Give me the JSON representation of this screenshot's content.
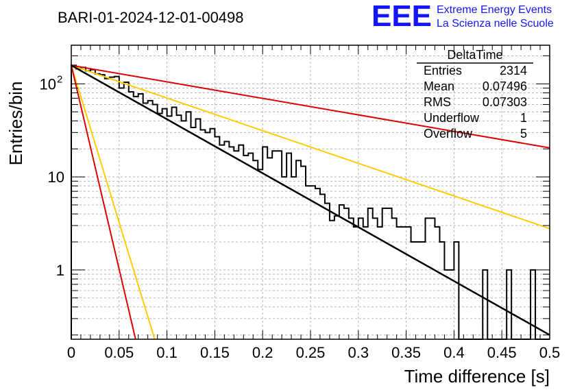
{
  "chart_data": {
    "type": "histogram",
    "title": "BARI-01-2024-12-01-00498",
    "xlabel": "Time difference [s]",
    "ylabel": "Entries/bin",
    "xlim": [
      0,
      0.5
    ],
    "ylim": [
      0.18,
      260
    ],
    "yscale": "log",
    "x_ticks": [
      "0",
      "0.05",
      "0.1",
      "0.15",
      "0.2",
      "0.25",
      "0.3",
      "0.35",
      "0.4",
      "0.45",
      "0.5"
    ],
    "y_ticks": [
      {
        "value": 1,
        "label": "1"
      },
      {
        "value": 10,
        "label": "10"
      },
      {
        "value": 100,
        "label": "10",
        "exp": "2"
      }
    ],
    "grid": true,
    "bin_width": 0.005,
    "histogram_values": [
      158,
      145,
      150,
      138,
      142,
      128,
      125,
      114,
      118,
      120,
      90,
      104,
      82,
      73,
      78,
      62,
      66,
      60,
      48,
      54,
      45,
      56,
      46,
      40,
      50,
      34,
      42,
      32,
      30,
      33,
      27,
      22,
      24,
      21,
      19,
      22,
      17,
      18,
      15,
      12,
      21,
      16,
      19,
      19,
      10,
      18,
      10,
      15,
      13,
      8,
      8,
      7.5,
      6.5,
      5.2,
      3.4,
      3.8,
      5,
      4.6,
      3.6,
      2.9,
      3.6,
      2.9,
      4.6,
      3.6,
      2.9,
      4.6,
      4.6,
      3.6,
      2.9,
      2.9,
      2.9,
      2.0,
      2.0,
      2.0,
      3.6,
      3.6,
      2.9,
      2.0,
      1.0,
      1.0,
      2.0,
      0.1,
      0.1,
      0.1,
      0.1,
      0.1,
      1.0,
      0.1,
      0.1,
      0.1,
      0.1,
      1.0,
      0.1,
      0.1,
      0.1,
      0.1,
      1.0,
      0.1,
      0.1,
      0.1
    ],
    "fit_curves": [
      {
        "name": "black-fit",
        "color": "#000000",
        "x": [
          0.0,
          0.5
        ],
        "y": [
          158,
          0.2
        ]
      },
      {
        "name": "red-slow",
        "color": "#dd0000",
        "x": [
          0.0,
          0.5
        ],
        "y": [
          158,
          20.5
        ]
      },
      {
        "name": "orange-slow",
        "color": "#ffcc00",
        "x": [
          0.0,
          0.5
        ],
        "y": [
          158,
          2.78
        ]
      },
      {
        "name": "red-fast",
        "color": "#dd0000",
        "x": [
          0.0,
          0.0672
        ],
        "y": [
          158,
          0.18
        ]
      },
      {
        "name": "orange-fast",
        "color": "#ffcc00",
        "x": [
          0.0,
          0.0872
        ],
        "y": [
          158,
          0.18
        ]
      }
    ],
    "stats": {
      "name": "DeltaTime",
      "rows": [
        {
          "label": "Entries",
          "value": "2314"
        },
        {
          "label": "Mean",
          "value": "0.07496"
        },
        {
          "label": "RMS",
          "value": "0.07303"
        },
        {
          "label": "Underflow",
          "value": "1"
        },
        {
          "label": "Overflow",
          "value": "5"
        }
      ]
    }
  },
  "logo": {
    "main": "EEE",
    "line1": "Extreme Energy Events",
    "line2": "La Scienza nelle Scuole"
  }
}
